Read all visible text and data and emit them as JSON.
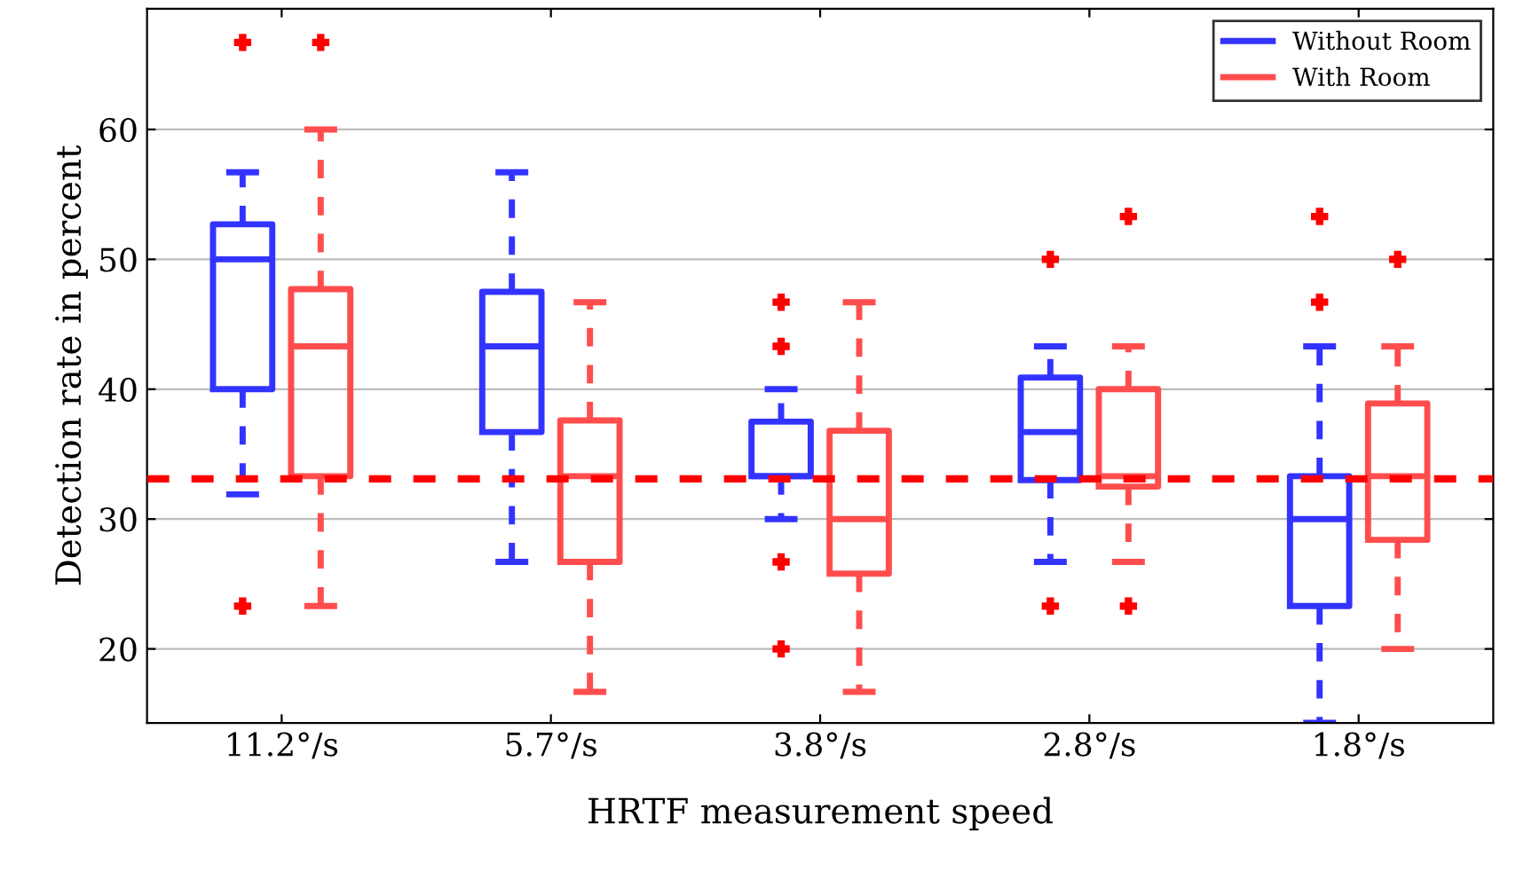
{
  "chart_data": {
    "type": "box",
    "xlabel": "HRTF measurement speed",
    "ylabel": "Detection rate in percent",
    "categories": [
      "11.2°/s",
      "5.7°/s",
      "3.8°/s",
      "2.8°/s",
      "1.8°/s"
    ],
    "ylim": [
      14.3,
      69.3
    ],
    "yticks": [
      20,
      30,
      40,
      50,
      60
    ],
    "grid": "y",
    "legend": "top right",
    "line_style": "dashed",
    "marker": "cross",
    "ref_lines": [
      {
        "axis": "y",
        "value": 33.1,
        "color": "#ff0000",
        "line_style": "dashed"
      }
    ],
    "series": [
      {
        "name": "Without Room",
        "color": "#3333ff",
        "boxes": [
          {
            "low": 31.9,
            "q1": 40,
            "median": 50,
            "q3": 52.7,
            "high": 56.7,
            "outliers": [
              66.7,
              23.3
            ]
          },
          {
            "low": 26.7,
            "q1": 36.7,
            "median": 43.3,
            "q3": 47.5,
            "high": 56.7
          },
          {
            "low": 30,
            "q1": 33.3,
            "median": 33.3,
            "q3": 37.5,
            "high": 40,
            "outliers": [
              46.7,
              43.3,
              26.7,
              20
            ]
          },
          {
            "low": 26.7,
            "q1": 33,
            "median": 36.7,
            "q3": 40.9,
            "high": 43.3,
            "outliers": [
              50,
              23.3
            ]
          },
          {
            "low": 14.3,
            "q1": 23.3,
            "median": 30,
            "q3": 33.3,
            "high": 43.3,
            "outliers": [
              53.3,
              46.7
            ]
          }
        ]
      },
      {
        "name": "With Room",
        "color": "#ff4d4d",
        "boxes": [
          {
            "low": 23.3,
            "q1": 33.3,
            "median": 43.3,
            "q3": 47.7,
            "high": 60,
            "outliers": [
              66.7
            ]
          },
          {
            "low": 16.7,
            "q1": 26.7,
            "median": 33.3,
            "q3": 37.6,
            "high": 46.7
          },
          {
            "low": 16.7,
            "q1": 25.8,
            "median": 30,
            "q3": 36.8,
            "high": 46.7
          },
          {
            "low": 26.7,
            "q1": 32.5,
            "median": 33.3,
            "q3": 40,
            "high": 43.3,
            "outliers": [
              53.3,
              23.3
            ]
          },
          {
            "low": 20,
            "q1": 28.4,
            "median": 33.3,
            "q3": 38.9,
            "high": 43.3,
            "outliers": [
              50
            ]
          }
        ]
      }
    ]
  }
}
